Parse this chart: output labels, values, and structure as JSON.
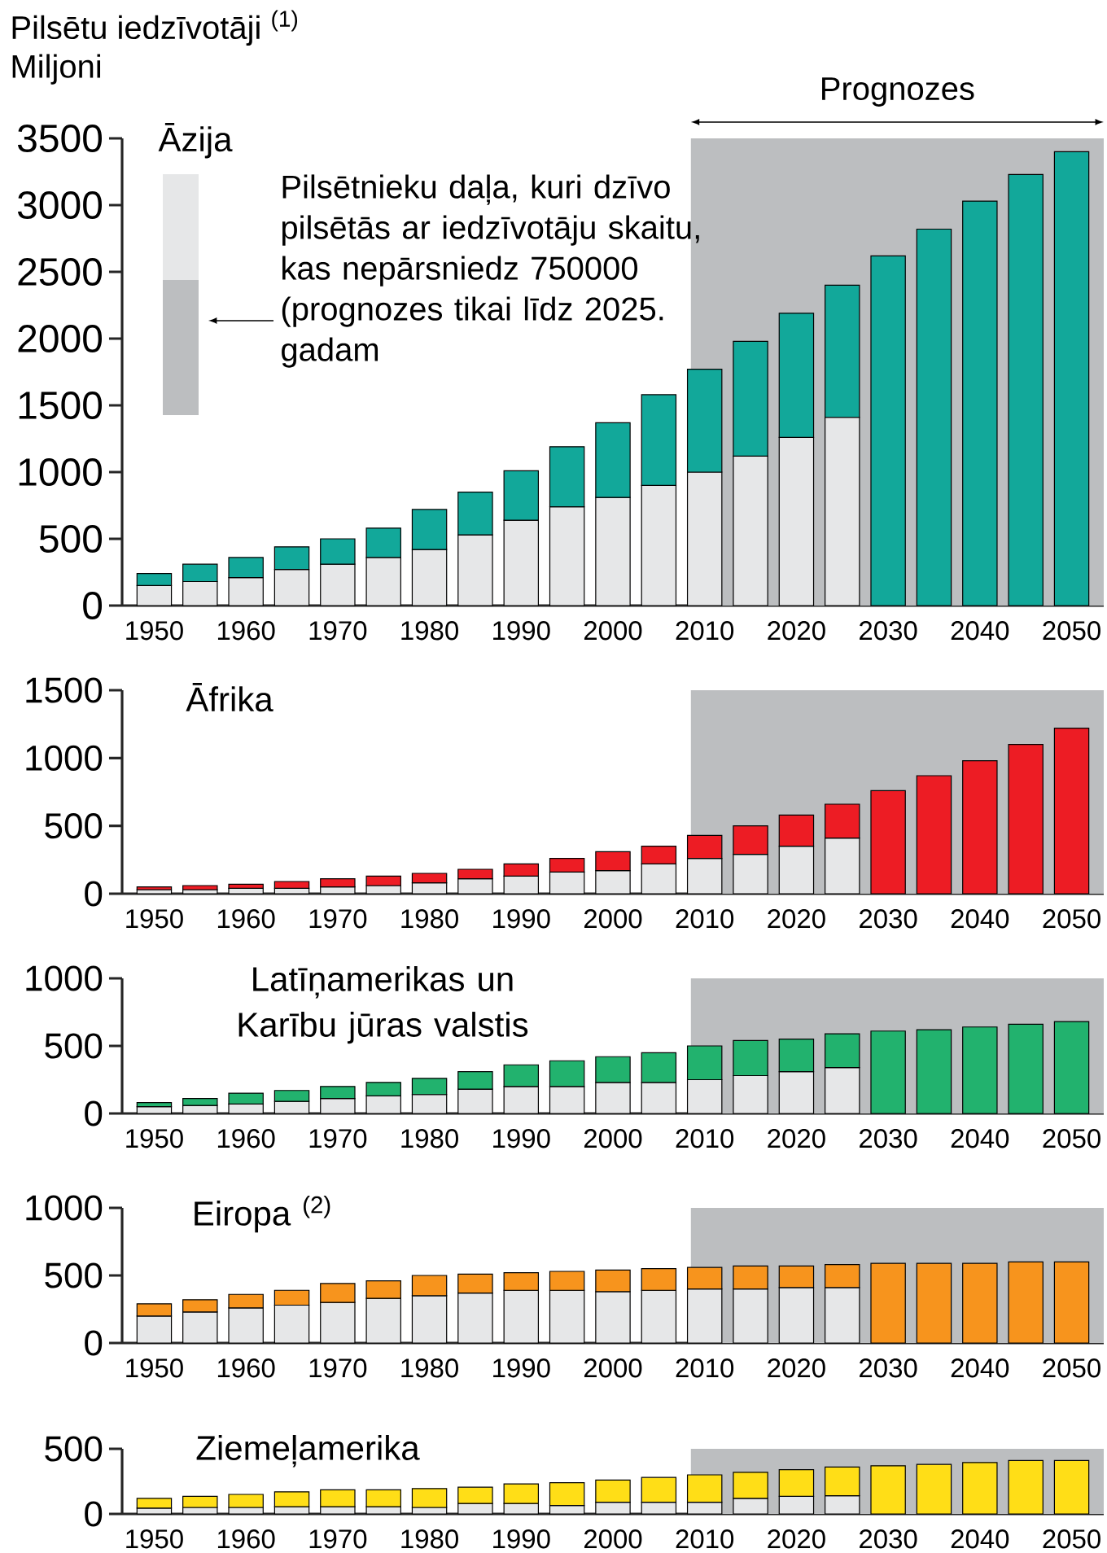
{
  "chart_data": [
    {
      "type": "bar",
      "stacked": true,
      "title": "Āzija",
      "ylabel": "Miljoni",
      "annotations": [
        "Pilsētu iedzīvotāji $^{(1)}$"
      ],
      "legend": "top left",
      "x": [
        1950,
        1955,
        1960,
        1965,
        1970,
        1975,
        1980,
        1985,
        1990,
        1995,
        2000,
        2005,
        2010,
        2015,
        2020,
        2025,
        2030,
        2035,
        2040,
        2045,
        2050
      ],
      "xlim": [
        1946.5,
        2053.5
      ],
      "xticks": [
        1950,
        1960,
        1970,
        1980,
        1990,
        2000,
        2010,
        2020,
        2030,
        2040,
        2050
      ],
      "ylim": [
        0,
        3500
      ],
      "yticks": [
        0,
        500,
        1000,
        1500,
        2000,
        2500,
        3000,
        3500
      ],
      "bands": [
        {
          "axis": "x",
          "from": 2008.5,
          "to": 2053.5,
          "label": "Prognozes",
          "color": "#bcbec0"
        }
      ],
      "series": [
        {
          "name": "Pilsētnieku daļa, kuri dzīvo pilsētās ar iedzīvotāju skaitu, kas nepārsniedz 750000 (prognozes tikai līdz 2025. gadam",
          "color": "#e6e7e8",
          "values": [
            150,
            180,
            210,
            270,
            310,
            360,
            420,
            530,
            640,
            740,
            810,
            900,
            1000,
            1120,
            1260,
            1410,
            null,
            null,
            null,
            null,
            null
          ]
        },
        {
          "color": "#12a89a",
          "values": [
            90,
            130,
            150,
            170,
            190,
            220,
            300,
            320,
            370,
            450,
            560,
            680,
            770,
            860,
            930,
            990,
            2620,
            2820,
            3030,
            3230,
            3400
          ]
        }
      ]
    },
    {
      "type": "bar",
      "stacked": true,
      "title": "Āfrika",
      "x": [
        1950,
        1955,
        1960,
        1965,
        1970,
        1975,
        1980,
        1985,
        1990,
        1995,
        2000,
        2005,
        2010,
        2015,
        2020,
        2025,
        2030,
        2035,
        2040,
        2045,
        2050
      ],
      "xlim": [
        1946.5,
        2053.5
      ],
      "xticks": [
        1950,
        1960,
        1970,
        1980,
        1990,
        2000,
        2010,
        2020,
        2030,
        2040,
        2050
      ],
      "ylim": [
        0,
        1500
      ],
      "yticks": [
        0,
        500,
        1000,
        1500
      ],
      "bands": [
        {
          "axis": "x",
          "from": 2008.5,
          "to": 2053.5,
          "color": "#bcbec0"
        }
      ],
      "series": [
        {
          "color": "#e6e7e8",
          "values": [
            30,
            30,
            40,
            40,
            50,
            60,
            80,
            110,
            130,
            160,
            170,
            220,
            260,
            290,
            350,
            410,
            null,
            null,
            null,
            null,
            null
          ]
        },
        {
          "color": "#ed1c24",
          "values": [
            20,
            30,
            30,
            50,
            60,
            70,
            70,
            70,
            90,
            100,
            140,
            130,
            170,
            210,
            230,
            250,
            760,
            870,
            980,
            1100,
            1220
          ]
        }
      ]
    },
    {
      "type": "bar",
      "stacked": true,
      "title": "Latīņamerikas un Karību jūras valstis",
      "x": [
        1950,
        1955,
        1960,
        1965,
        1970,
        1975,
        1980,
        1985,
        1990,
        1995,
        2000,
        2005,
        2010,
        2015,
        2020,
        2025,
        2030,
        2035,
        2040,
        2045,
        2050
      ],
      "xlim": [
        1946.5,
        2053.5
      ],
      "xticks": [
        1950,
        1960,
        1970,
        1980,
        1990,
        2000,
        2010,
        2020,
        2030,
        2040,
        2050
      ],
      "ylim": [
        0,
        1000
      ],
      "yticks": [
        0,
        500,
        1000
      ],
      "bands": [
        {
          "axis": "x",
          "from": 2008.5,
          "to": 2053.5,
          "color": "#bcbec0"
        }
      ],
      "series": [
        {
          "color": "#e6e7e8",
          "values": [
            50,
            60,
            70,
            90,
            110,
            130,
            140,
            180,
            200,
            200,
            230,
            230,
            250,
            280,
            310,
            340,
            null,
            null,
            null,
            null,
            null
          ]
        },
        {
          "color": "#22b26e",
          "values": [
            30,
            50,
            80,
            80,
            90,
            100,
            120,
            130,
            160,
            190,
            190,
            220,
            250,
            260,
            240,
            250,
            610,
            620,
            640,
            660,
            680
          ]
        }
      ]
    },
    {
      "type": "bar",
      "stacked": true,
      "title": "Eiropa $^{(2)}$",
      "x": [
        1950,
        1955,
        1960,
        1965,
        1970,
        1975,
        1980,
        1985,
        1990,
        1995,
        2000,
        2005,
        2010,
        2015,
        2020,
        2025,
        2030,
        2035,
        2040,
        2045,
        2050
      ],
      "xlim": [
        1946.5,
        2053.5
      ],
      "xticks": [
        1950,
        1960,
        1970,
        1980,
        1990,
        2000,
        2010,
        2020,
        2030,
        2040,
        2050
      ],
      "ylim": [
        0,
        1000
      ],
      "yticks": [
        0,
        500,
        1000
      ],
      "bands": [
        {
          "axis": "x",
          "from": 2008.5,
          "to": 2053.5,
          "color": "#bcbec0"
        }
      ],
      "series": [
        {
          "color": "#e6e7e8",
          "values": [
            200,
            230,
            260,
            280,
            300,
            330,
            350,
            370,
            390,
            390,
            380,
            390,
            400,
            400,
            410,
            410,
            null,
            null,
            null,
            null,
            null
          ]
        },
        {
          "color": "#f7941d",
          "values": [
            90,
            90,
            100,
            110,
            140,
            130,
            150,
            140,
            130,
            140,
            160,
            160,
            160,
            170,
            160,
            170,
            590,
            590,
            590,
            600,
            600
          ]
        }
      ]
    },
    {
      "type": "bar",
      "stacked": true,
      "title": "Ziemeļamerika",
      "x": [
        1950,
        1955,
        1960,
        1965,
        1970,
        1975,
        1980,
        1985,
        1990,
        1995,
        2000,
        2005,
        2010,
        2015,
        2020,
        2025,
        2030,
        2035,
        2040,
        2045,
        2050
      ],
      "xlim": [
        1946.5,
        2053.5
      ],
      "xticks": [
        1950,
        1960,
        1970,
        1980,
        1990,
        2000,
        2010,
        2020,
        2030,
        2040,
        2050
      ],
      "ylim": [
        0,
        500
      ],
      "yticks": [
        0,
        500
      ],
      "bands": [
        {
          "axis": "x",
          "from": 2008.5,
          "to": 2053.5,
          "color": "#bcbec0"
        }
      ],
      "series": [
        {
          "color": "#e6e7e8",
          "values": [
            45,
            50,
            50,
            55,
            55,
            55,
            50,
            80,
            80,
            65,
            90,
            90,
            90,
            120,
            135,
            140,
            null,
            null,
            null,
            null,
            null
          ]
        },
        {
          "color": "#ffde17",
          "values": [
            75,
            85,
            100,
            115,
            130,
            130,
            145,
            125,
            150,
            175,
            170,
            190,
            210,
            200,
            205,
            220,
            370,
            380,
            395,
            410,
            410
          ]
        }
      ]
    }
  ]
}
